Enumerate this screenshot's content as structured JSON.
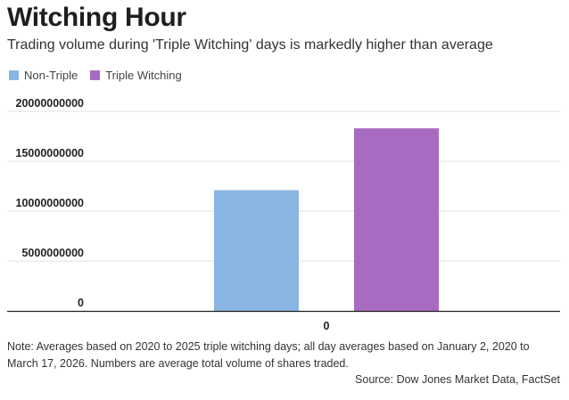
{
  "header": {
    "title": "Witching Hour",
    "subtitle": "Trading volume during 'Triple Witching' days is markedly higher than average"
  },
  "colors": {
    "non_triple": "#89b6e3",
    "triple": "#a86bc1",
    "grid": "#e2e2e2",
    "axis": "#222222"
  },
  "chart_data": {
    "type": "bar",
    "title": "Witching Hour",
    "subtitle": "Trading volume during 'Triple Witching' days is markedly higher than average",
    "categories": [
      "0"
    ],
    "series": [
      {
        "name": "Non-Triple",
        "values": [
          12100000000
        ]
      },
      {
        "name": "Triple Witching",
        "values": [
          18300000000
        ]
      }
    ],
    "ylim": [
      0,
      20000000000
    ],
    "yticks": [
      0,
      5000000000,
      10000000000,
      15000000000,
      20000000000
    ],
    "ytick_labels": [
      "0",
      "5000000000",
      "10000000000",
      "15000000000",
      "20000000000"
    ],
    "xlabel": "",
    "ylabel": "",
    "grid": true,
    "legend_position": "top-left"
  },
  "footer": {
    "note": "Note: Averages based on 2020 to 2025 triple witching days; all day averages based on January 2, 2020 to March 17, 2026. Numbers are average total volume of shares traded.",
    "source": "Source: Dow Jones Market Data, FactSet"
  }
}
